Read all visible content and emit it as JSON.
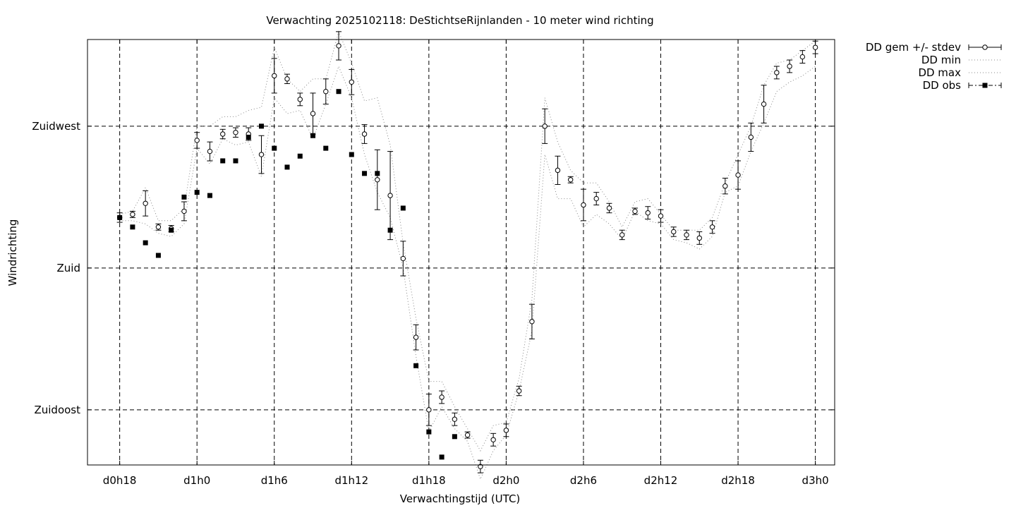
{
  "chart_data": {
    "type": "line",
    "title": "Verwachting 2025102118: DeStichtseRijnlanden - 10 meter wind richting",
    "xlabel": "Verwachtingstijd (UTC)",
    "ylabel": "Windrichting",
    "x_unit": "hours since d0h0",
    "xlim": [
      15.5,
      73.5
    ],
    "x_ticks": [
      {
        "x": 18,
        "label": "d0h18"
      },
      {
        "x": 24,
        "label": "d1h0"
      },
      {
        "x": 30,
        "label": "d1h6"
      },
      {
        "x": 36,
        "label": "d1h12"
      },
      {
        "x": 42,
        "label": "d1h18"
      },
      {
        "x": 48,
        "label": "d2h0"
      },
      {
        "x": 54,
        "label": "d2h6"
      },
      {
        "x": 60,
        "label": "d2h12"
      },
      {
        "x": 66,
        "label": "d2h18"
      },
      {
        "x": 72,
        "label": "d3h0"
      }
    ],
    "ylim": [
      117.5,
      252.5
    ],
    "y_ticks": [
      {
        "y": 135,
        "label": "Zuidoost"
      },
      {
        "y": 180,
        "label": "Zuid"
      },
      {
        "y": 225,
        "label": "Zuidwest"
      }
    ],
    "grid": true,
    "legend_position": "outside-top-right",
    "series": [
      {
        "name": "DD gem +/- stdev",
        "style": "points-errorbars-open-circle",
        "x": [
          18,
          19,
          20,
          21,
          22,
          23,
          24,
          25,
          26,
          27,
          28,
          29,
          30,
          31,
          32,
          33,
          34,
          35,
          36,
          37,
          38,
          39,
          40,
          41,
          42,
          43,
          44,
          45,
          46,
          47,
          48,
          49,
          50,
          51,
          52,
          53,
          54,
          55,
          56,
          57,
          58,
          59,
          60,
          61,
          62,
          63,
          64,
          65,
          66,
          67,
          68,
          69,
          70,
          71,
          72
        ],
        "y": [
          196,
          197,
          200.5,
          193,
          192.5,
          198,
          220.5,
          217,
          222.5,
          223,
          222.5,
          216,
          241,
          240,
          233.5,
          229,
          236,
          250.5,
          239,
          222.5,
          208,
          203,
          183,
          158,
          135,
          139,
          132,
          127,
          117,
          125.5,
          128.5,
          141,
          163,
          225,
          211,
          208,
          200,
          202,
          199,
          190.5,
          198,
          197.5,
          196.5,
          191.5,
          190.5,
          189.5,
          193,
          206,
          209.5,
          221.5,
          232,
          242,
          244,
          247,
          250
        ],
        "err": [
          1.5,
          1,
          4,
          1,
          1,
          3,
          2.5,
          3,
          1.5,
          1.5,
          2,
          6,
          5.5,
          1.5,
          2,
          6.5,
          4,
          4.5,
          4,
          3,
          9.5,
          14,
          5.5,
          4,
          5,
          2,
          2,
          1,
          2,
          2,
          2,
          1.5,
          5.5,
          5.5,
          4.5,
          1,
          5,
          2,
          1.5,
          1.5,
          1,
          2,
          2,
          1.5,
          1.5,
          2,
          2,
          2.5,
          4.5,
          4.5,
          6,
          2,
          2,
          2,
          2
        ]
      },
      {
        "name": "DD min",
        "style": "dotted",
        "x": [
          18,
          19,
          20,
          21,
          22,
          23,
          24,
          25,
          26,
          27,
          28,
          29,
          30,
          31,
          32,
          33,
          34,
          35,
          36,
          37,
          38,
          39,
          40,
          41,
          42,
          43,
          44,
          45,
          46,
          47,
          48,
          49,
          50,
          51,
          52,
          53,
          54,
          55,
          56,
          57,
          58,
          59,
          60,
          61,
          62,
          63,
          64,
          65,
          66,
          67,
          68,
          69,
          70,
          71,
          72
        ],
        "y": [
          195,
          195,
          194,
          191,
          190,
          194,
          218,
          213,
          221,
          219,
          220,
          209,
          234,
          229,
          230,
          221,
          232,
          244,
          234,
          216,
          204,
          196,
          180,
          152,
          128,
          136,
          129,
          125,
          113,
          122,
          127,
          141,
          160,
          216,
          202,
          202,
          193,
          197,
          194,
          189,
          198,
          195,
          194,
          189,
          188,
          186,
          190,
          204,
          206,
          217,
          226,
          236,
          239,
          241,
          244
        ]
      },
      {
        "name": "DD max",
        "style": "dotted",
        "x": [
          18,
          19,
          20,
          21,
          22,
          23,
          24,
          25,
          26,
          27,
          28,
          29,
          30,
          31,
          32,
          33,
          34,
          35,
          36,
          37,
          38,
          39,
          40,
          41,
          42,
          43,
          44,
          45,
          46,
          47,
          48,
          49,
          50,
          51,
          52,
          53,
          54,
          55,
          56,
          57,
          58,
          59,
          60,
          61,
          62,
          63,
          64,
          65,
          66,
          67,
          68,
          69,
          70,
          71,
          72
        ],
        "y": [
          197,
          198,
          205.5,
          195,
          195,
          199,
          225,
          225,
          228,
          228,
          230,
          231,
          250,
          240,
          236,
          240,
          240,
          255,
          245,
          233,
          234,
          219,
          188,
          164,
          144,
          144,
          136,
          129,
          122,
          130,
          131,
          145,
          170,
          234,
          220,
          211,
          207,
          207,
          201,
          193,
          201,
          202,
          197,
          192,
          192,
          192,
          196,
          207,
          216,
          225,
          238,
          245,
          246,
          249,
          252
        ]
      },
      {
        "name": "DD obs",
        "style": "filled-squares",
        "x": [
          18,
          19,
          20,
          21,
          22,
          23,
          24,
          25,
          26,
          27,
          28,
          29,
          30,
          31,
          32,
          33,
          34,
          35,
          36,
          37,
          38,
          39,
          40,
          41,
          42,
          43,
          44,
          45
        ],
        "y": [
          196,
          193,
          188,
          184,
          192,
          202.5,
          204,
          203,
          214,
          214,
          221.5,
          225,
          218,
          212,
          215.5,
          222,
          218,
          236,
          216,
          210,
          210,
          192,
          199,
          149,
          128,
          120,
          126.5,
          null
        ]
      }
    ]
  }
}
